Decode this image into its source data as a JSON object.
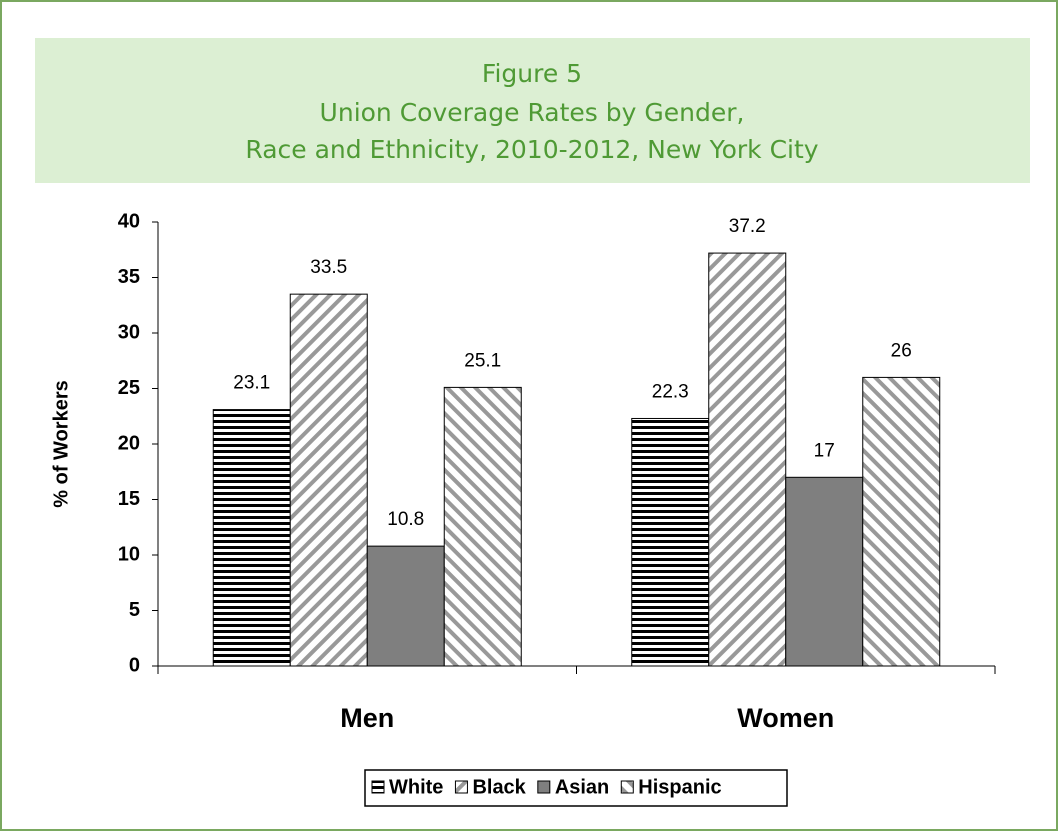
{
  "chart_data": {
    "type": "bar",
    "title": "Figure 5",
    "subtitle": [
      "Union Coverage Rates by Gender,",
      "Race and Ethnicity, 2010-2012, New York City"
    ],
    "y_label": "% of Workers",
    "categories": [
      "Men",
      "Women"
    ],
    "series": [
      {
        "name": "White",
        "color": "#000000",
        "pattern": "horizontal",
        "values": [
          23.1,
          22.3
        ]
      },
      {
        "name": "Black",
        "color": "#999999",
        "pattern": "diagonal-up",
        "values": [
          33.5,
          37.2
        ]
      },
      {
        "name": "Asian",
        "color": "#7f7f7f",
        "pattern": "solid",
        "values": [
          10.8,
          17
        ]
      },
      {
        "name": "Hispanic",
        "color": "#999999",
        "pattern": "diagonal-down",
        "values": [
          25.1,
          26
        ]
      }
    ],
    "ylim": [
      0,
      40
    ],
    "yticks": [
      0,
      5,
      10,
      15,
      20,
      25,
      30,
      35,
      40
    ],
    "legend": "bottom"
  }
}
